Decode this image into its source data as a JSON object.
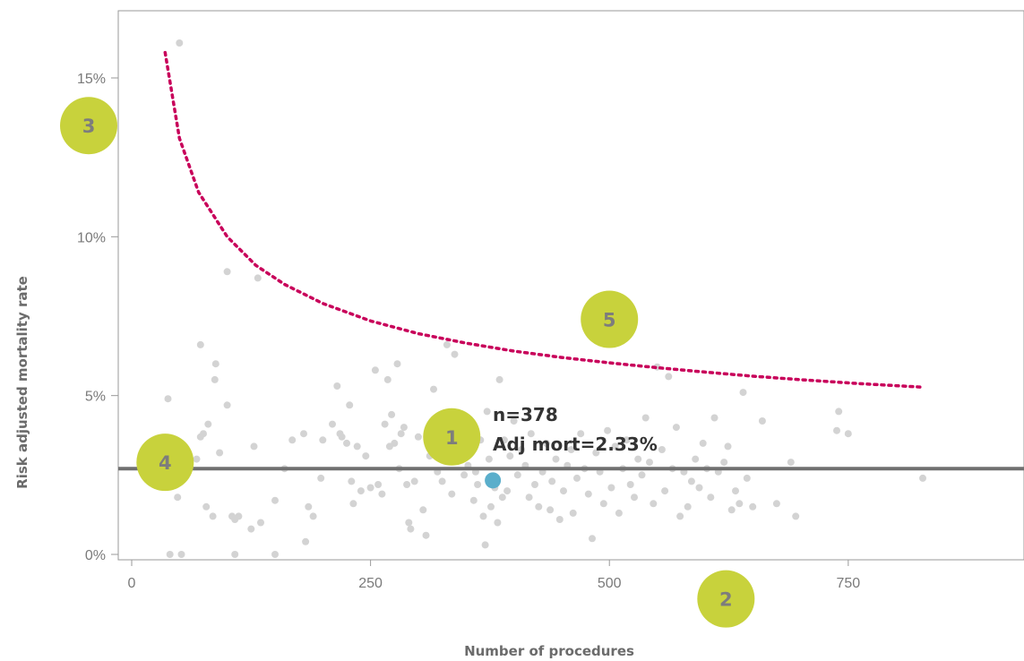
{
  "chart_data": {
    "type": "scatter",
    "title": "",
    "xlabel": "Number of procedures",
    "ylabel": "Risk adjusted mortality rate",
    "xlim": [
      -20,
      930
    ],
    "ylim": [
      -0.3,
      17
    ],
    "x_ticks": [
      {
        "value": 0,
        "label": "0"
      },
      {
        "value": 250,
        "label": "250"
      },
      {
        "value": 500,
        "label": "500"
      },
      {
        "value": 750,
        "label": "750"
      }
    ],
    "y_ticks": [
      {
        "value": 0,
        "label": "0%"
      },
      {
        "value": 5,
        "label": "5%"
      },
      {
        "value": 10,
        "label": "10%"
      },
      {
        "value": 15,
        "label": "15%"
      }
    ],
    "grid": false,
    "colors": {
      "points": "#d3d3d3",
      "highlight": "#5aaecb",
      "mean_line": "#707070",
      "control_limit": "#c8005a",
      "badge": "#c8d23c",
      "badge_text": "#7d7d7d"
    },
    "mean_rate": 2.7,
    "control_limit": [
      {
        "x": 35,
        "y": 15.8
      },
      {
        "x": 50,
        "y": 13.1
      },
      {
        "x": 70,
        "y": 11.4
      },
      {
        "x": 100,
        "y": 10.0
      },
      {
        "x": 130,
        "y": 9.1
      },
      {
        "x": 160,
        "y": 8.5
      },
      {
        "x": 200,
        "y": 7.9
      },
      {
        "x": 250,
        "y": 7.35
      },
      {
        "x": 300,
        "y": 6.95
      },
      {
        "x": 350,
        "y": 6.65
      },
      {
        "x": 400,
        "y": 6.4
      },
      {
        "x": 450,
        "y": 6.2
      },
      {
        "x": 500,
        "y": 6.03
      },
      {
        "x": 550,
        "y": 5.88
      },
      {
        "x": 600,
        "y": 5.74
      },
      {
        "x": 650,
        "y": 5.61
      },
      {
        "x": 700,
        "y": 5.5
      },
      {
        "x": 760,
        "y": 5.38
      },
      {
        "x": 825,
        "y": 5.27
      }
    ],
    "highlight": {
      "x": 378,
      "y": 2.33,
      "label_n": "n=378",
      "label_rate": "Adj mort=2.33%"
    },
    "points": [
      [
        50,
        16.1
      ],
      [
        38,
        4.9
      ],
      [
        72,
        6.6
      ],
      [
        88,
        6.0
      ],
      [
        87,
        5.5
      ],
      [
        100,
        4.7
      ],
      [
        75,
        3.8
      ],
      [
        72,
        3.7
      ],
      [
        80,
        4.1
      ],
      [
        92,
        3.2
      ],
      [
        68,
        3.0
      ],
      [
        55,
        2.7
      ],
      [
        48,
        1.8
      ],
      [
        78,
        1.5
      ],
      [
        85,
        1.2
      ],
      [
        105,
        1.2
      ],
      [
        108,
        1.1
      ],
      [
        112,
        1.2
      ],
      [
        125,
        0.8
      ],
      [
        135,
        1.0
      ],
      [
        40,
        0.0
      ],
      [
        52,
        0.0
      ],
      [
        108,
        0.0
      ],
      [
        150,
        0.0
      ],
      [
        100,
        8.9
      ],
      [
        132,
        8.7
      ],
      [
        150,
        1.7
      ],
      [
        128,
        3.4
      ],
      [
        160,
        2.7
      ],
      [
        168,
        3.6
      ],
      [
        180,
        3.8
      ],
      [
        185,
        1.5
      ],
      [
        190,
        1.2
      ],
      [
        182,
        0.4
      ],
      [
        198,
        2.4
      ],
      [
        200,
        3.6
      ],
      [
        210,
        4.1
      ],
      [
        215,
        5.3
      ],
      [
        218,
        3.8
      ],
      [
        220,
        3.7
      ],
      [
        225,
        3.5
      ],
      [
        228,
        4.7
      ],
      [
        230,
        2.3
      ],
      [
        232,
        1.6
      ],
      [
        236,
        3.4
      ],
      [
        240,
        2.0
      ],
      [
        245,
        3.1
      ],
      [
        250,
        2.1
      ],
      [
        255,
        5.8
      ],
      [
        258,
        2.2
      ],
      [
        262,
        1.9
      ],
      [
        265,
        4.1
      ],
      [
        268,
        5.5
      ],
      [
        270,
        3.4
      ],
      [
        272,
        4.4
      ],
      [
        275,
        3.5
      ],
      [
        278,
        6.0
      ],
      [
        280,
        2.7
      ],
      [
        282,
        3.8
      ],
      [
        285,
        4.0
      ],
      [
        288,
        2.2
      ],
      [
        290,
        1.0
      ],
      [
        292,
        0.8
      ],
      [
        296,
        2.3
      ],
      [
        300,
        3.7
      ],
      [
        305,
        1.4
      ],
      [
        308,
        0.6
      ],
      [
        312,
        3.1
      ],
      [
        316,
        5.2
      ],
      [
        320,
        2.6
      ],
      [
        325,
        2.3
      ],
      [
        330,
        6.6
      ],
      [
        335,
        1.9
      ],
      [
        338,
        6.3
      ],
      [
        342,
        4.3
      ],
      [
        345,
        3.5
      ],
      [
        348,
        2.5
      ],
      [
        352,
        2.8
      ],
      [
        355,
        3.3
      ],
      [
        358,
        1.7
      ],
      [
        360,
        2.6
      ],
      [
        362,
        2.2
      ],
      [
        365,
        3.6
      ],
      [
        368,
        1.2
      ],
      [
        370,
        0.3
      ],
      [
        372,
        4.5
      ],
      [
        374,
        3.0
      ],
      [
        376,
        1.5
      ],
      [
        380,
        2.1
      ],
      [
        383,
        1.0
      ],
      [
        385,
        5.5
      ],
      [
        388,
        1.8
      ],
      [
        390,
        3.6
      ],
      [
        393,
        2.0
      ],
      [
        396,
        3.1
      ],
      [
        400,
        4.2
      ],
      [
        404,
        2.5
      ],
      [
        408,
        3.3
      ],
      [
        412,
        2.8
      ],
      [
        416,
        1.8
      ],
      [
        418,
        3.8
      ],
      [
        422,
        2.2
      ],
      [
        426,
        1.5
      ],
      [
        430,
        2.6
      ],
      [
        434,
        3.5
      ],
      [
        438,
        1.4
      ],
      [
        440,
        2.3
      ],
      [
        444,
        3.0
      ],
      [
        448,
        1.1
      ],
      [
        452,
        2.0
      ],
      [
        456,
        2.8
      ],
      [
        460,
        3.3
      ],
      [
        462,
        1.3
      ],
      [
        466,
        2.4
      ],
      [
        470,
        3.8
      ],
      [
        474,
        2.7
      ],
      [
        478,
        1.9
      ],
      [
        482,
        0.5
      ],
      [
        486,
        3.2
      ],
      [
        490,
        2.6
      ],
      [
        494,
        1.6
      ],
      [
        498,
        3.9
      ],
      [
        502,
        2.1
      ],
      [
        506,
        3.4
      ],
      [
        510,
        1.3
      ],
      [
        514,
        2.7
      ],
      [
        518,
        3.6
      ],
      [
        522,
        2.2
      ],
      [
        526,
        1.8
      ],
      [
        530,
        3.0
      ],
      [
        534,
        2.5
      ],
      [
        538,
        4.3
      ],
      [
        542,
        2.9
      ],
      [
        546,
        1.6
      ],
      [
        550,
        5.9
      ],
      [
        555,
        3.3
      ],
      [
        558,
        2.0
      ],
      [
        562,
        5.6
      ],
      [
        566,
        2.7
      ],
      [
        570,
        4.0
      ],
      [
        574,
        1.2
      ],
      [
        578,
        2.6
      ],
      [
        582,
        1.5
      ],
      [
        586,
        2.3
      ],
      [
        590,
        3.0
      ],
      [
        594,
        2.1
      ],
      [
        598,
        3.5
      ],
      [
        602,
        2.7
      ],
      [
        606,
        1.8
      ],
      [
        610,
        4.3
      ],
      [
        614,
        2.6
      ],
      [
        620,
        2.9
      ],
      [
        624,
        3.4
      ],
      [
        628,
        1.4
      ],
      [
        632,
        2.0
      ],
      [
        636,
        1.6
      ],
      [
        640,
        5.1
      ],
      [
        644,
        2.4
      ],
      [
        650,
        1.5
      ],
      [
        660,
        4.2
      ],
      [
        675,
        1.6
      ],
      [
        690,
        2.9
      ],
      [
        695,
        1.2
      ],
      [
        740,
        4.5
      ],
      [
        750,
        3.8
      ],
      [
        738,
        3.9
      ],
      [
        828,
        2.4
      ]
    ],
    "annotations": [
      {
        "label": "1",
        "x": 335,
        "y": 3.7
      },
      {
        "label": "2",
        "x": 622,
        "y": -1.4
      },
      {
        "label": "3",
        "x": -45,
        "y": 13.5
      },
      {
        "label": "4",
        "x": 35,
        "y": 2.9
      },
      {
        "label": "5",
        "x": 500,
        "y": 7.4
      }
    ]
  }
}
